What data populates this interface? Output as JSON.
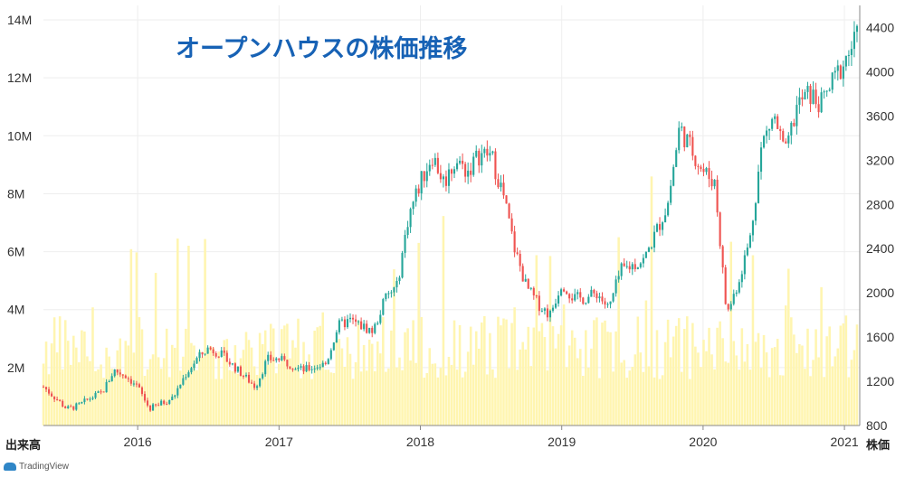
{
  "chart_data": {
    "type": "candlestick+volume",
    "title": "オープンハウスの株価推移",
    "left_axis_label": "出来高",
    "right_axis_label": "株価",
    "volume_ticks": [
      "14M",
      "12M",
      "10M",
      "8M",
      "6M",
      "4M",
      "2M"
    ],
    "volume_tick_values": [
      14000000,
      12000000,
      10000000,
      8000000,
      6000000,
      4000000,
      2000000
    ],
    "volume_ylim": [
      0,
      14500000
    ],
    "price_ticks": [
      "4400",
      "4000",
      "3600",
      "3200",
      "2800",
      "2400",
      "2000",
      "1600",
      "1200",
      "800"
    ],
    "price_tick_values": [
      4400,
      4000,
      3600,
      3200,
      2800,
      2400,
      2000,
      1600,
      1200,
      800
    ],
    "price_ylim": [
      800,
      4600
    ],
    "x_tick_labels": [
      "2016",
      "2017",
      "2018",
      "2019",
      "2020",
      "2021"
    ],
    "x_tick_dates": [
      "2016-01",
      "2017-01",
      "2018-01",
      "2019-01",
      "2020-01",
      "2021-01"
    ],
    "x_range": [
      "2015-05",
      "2021-02"
    ],
    "colors": {
      "up": "#26a69a",
      "down": "#ef5350",
      "volume": "#fff5b0",
      "grid": "#eeeeee"
    },
    "price_anchors": [
      [
        "2015-05",
        1150
      ],
      [
        "2015-06",
        1050
      ],
      [
        "2015-07",
        950
      ],
      [
        "2015-08",
        980
      ],
      [
        "2015-09",
        1050
      ],
      [
        "2015-10",
        1100
      ],
      [
        "2015-11",
        1300
      ],
      [
        "2015-12",
        1250
      ],
      [
        "2016-01",
        1150
      ],
      [
        "2016-02",
        950
      ],
      [
        "2016-03",
        1000
      ],
      [
        "2016-04",
        1050
      ],
      [
        "2016-05",
        1250
      ],
      [
        "2016-06",
        1400
      ],
      [
        "2016-07",
        1500
      ],
      [
        "2016-08",
        1450
      ],
      [
        "2016-09",
        1350
      ],
      [
        "2016-10",
        1250
      ],
      [
        "2016-11",
        1150
      ],
      [
        "2016-12",
        1400
      ],
      [
        "2017-01",
        1400
      ],
      [
        "2017-02",
        1350
      ],
      [
        "2017-03",
        1300
      ],
      [
        "2017-04",
        1330
      ],
      [
        "2017-05",
        1360
      ],
      [
        "2017-06",
        1700
      ],
      [
        "2017-07",
        1750
      ],
      [
        "2017-08",
        1700
      ],
      [
        "2017-09",
        1650
      ],
      [
        "2017-10",
        1950
      ],
      [
        "2017-11",
        2050
      ],
      [
        "2017-12",
        2700
      ],
      [
        "2018-01",
        3000
      ],
      [
        "2018-02",
        3250
      ],
      [
        "2018-03",
        3000
      ],
      [
        "2018-04",
        3200
      ],
      [
        "2018-05",
        3100
      ],
      [
        "2018-06",
        3250
      ],
      [
        "2018-07",
        3250
      ],
      [
        "2018-08",
        2900
      ],
      [
        "2018-09",
        2400
      ],
      [
        "2018-10",
        2050
      ],
      [
        "2018-11",
        1900
      ],
      [
        "2018-12",
        1800
      ],
      [
        "2019-01",
        2100
      ],
      [
        "2019-02",
        1950
      ],
      [
        "2019-03",
        1950
      ],
      [
        "2019-04",
        2000
      ],
      [
        "2019-05",
        1850
      ],
      [
        "2019-06",
        2200
      ],
      [
        "2019-07",
        2250
      ],
      [
        "2019-08",
        2300
      ],
      [
        "2019-09",
        2550
      ],
      [
        "2019-10",
        2800
      ],
      [
        "2019-11",
        3500
      ],
      [
        "2019-12",
        3300
      ],
      [
        "2020-01",
        3100
      ],
      [
        "2020-02",
        3000
      ],
      [
        "2020-03",
        1800
      ],
      [
        "2020-04",
        2100
      ],
      [
        "2020-05",
        2500
      ],
      [
        "2020-06",
        3350
      ],
      [
        "2020-07",
        3600
      ],
      [
        "2020-08",
        3250
      ],
      [
        "2020-09",
        3700
      ],
      [
        "2020-10",
        3800
      ],
      [
        "2020-11",
        3700
      ],
      [
        "2020-12",
        3900
      ],
      [
        "2021-01",
        4100
      ],
      [
        "2021-02",
        4300
      ]
    ]
  }
}
